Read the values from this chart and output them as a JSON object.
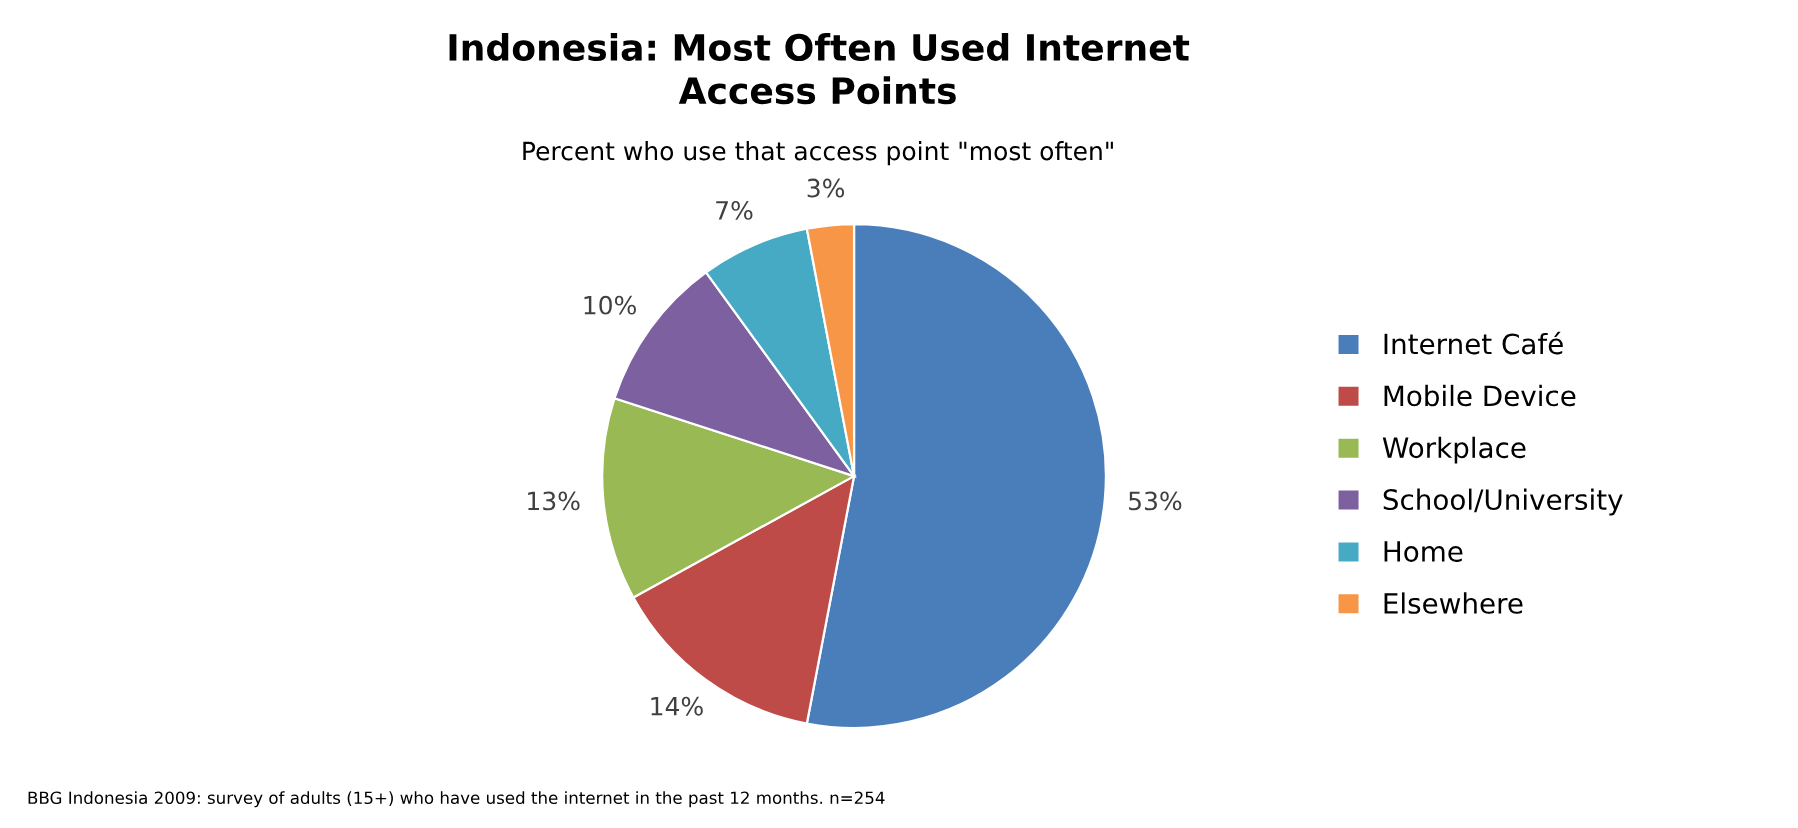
{
  "chart_data": {
    "type": "pie",
    "title": "Indonesia: Most Often Used Internet\nAccess Points",
    "subtitle": "Percent who use that access point \"most often\"",
    "categories": [
      "Internet Café",
      "Mobile Device",
      "Workplace",
      "School/University",
      "Home",
      "Elsewhere"
    ],
    "values": [
      53,
      14,
      13,
      10,
      7,
      3
    ],
    "colors": [
      "#4a7ebb",
      "#be4b48",
      "#98b954",
      "#7d60a0",
      "#46aac5",
      "#f79646"
    ],
    "value_labels": [
      "53%",
      "14%",
      "13%",
      "10%",
      "7%",
      "3%"
    ],
    "legend": "right",
    "annotations": [
      "BBG Indonesia 2009: survey of adults (15+) who have used the internet in the past 12 months. n=254"
    ]
  }
}
